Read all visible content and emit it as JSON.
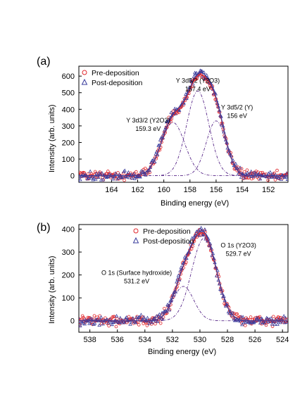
{
  "chart_data": [
    {
      "type": "scatter",
      "panel_label": "(a)",
      "xlabel": "Binding energy (eV)",
      "ylabel": "Intensity (arb. units)",
      "xlim": [
        166.5,
        150.5
      ],
      "ylim": [
        -40,
        660
      ],
      "x_reversed": true,
      "xticks": [
        164,
        162,
        160,
        158,
        156,
        154,
        152
      ],
      "yticks": [
        0,
        100,
        200,
        300,
        400,
        500,
        600
      ],
      "legend": {
        "placement": "top-left",
        "entries": [
          {
            "label": "Pre-deposition",
            "marker": "circle",
            "color": "#e0262b"
          },
          {
            "label": "Post-deposition",
            "marker": "triangle",
            "color": "#3a3d9c"
          }
        ]
      },
      "components": [
        {
          "center": 159.3,
          "amplitude": 320,
          "sigma": 0.9
        },
        {
          "center": 157.4,
          "amplitude": 510,
          "sigma": 0.85
        },
        {
          "center": 156.0,
          "amplitude": 330,
          "sigma": 0.75
        }
      ],
      "annotations": [
        {
          "lines": [
            "Y 3d5/2 (Y2O3)",
            "157.4 eV"
          ],
          "x": 157.4,
          "y": 560
        },
        {
          "lines": [
            "Y 3d3/2 (Y2O3)",
            "159.3 eV"
          ],
          "x": 161.2,
          "y": 320
        },
        {
          "lines": [
            "Y 3d5/2 (Y)",
            "156 eV"
          ],
          "x": 154.4,
          "y": 400
        }
      ]
    },
    {
      "type": "scatter",
      "panel_label": "(b)",
      "xlabel": "Binding energy (eV)",
      "ylabel": "Intensity (arb. units)",
      "xlim": [
        538.8,
        523.6
      ],
      "ylim": [
        -50,
        420
      ],
      "x_reversed": true,
      "xticks": [
        538,
        536,
        534,
        532,
        530,
        528,
        526,
        524
      ],
      "yticks": [
        0,
        100,
        200,
        300,
        400
      ],
      "legend": {
        "placement": "top-center",
        "entries": [
          {
            "label": "Pre-deposition",
            "marker": "circle",
            "color": "#e0262b"
          },
          {
            "label": "Post-deposition",
            "marker": "triangle",
            "color": "#3a3d9c"
          }
        ]
      },
      "components": [
        {
          "center": 531.2,
          "amplitude": 150,
          "sigma": 0.75
        },
        {
          "center": 529.7,
          "amplitude": 360,
          "sigma": 0.9
        }
      ],
      "annotations": [
        {
          "lines": [
            "O 1s (Y2O3)",
            "529.7 eV"
          ],
          "x": 527.2,
          "y": 320
        },
        {
          "lines": [
            "O 1s (Surface hydroxide)",
            "531.2 eV"
          ],
          "x": 534.6,
          "y": 200
        }
      ]
    }
  ],
  "colors": {
    "pre": "#e0262b",
    "post": "#3a3d9c",
    "fit": "#5a2a8a"
  }
}
